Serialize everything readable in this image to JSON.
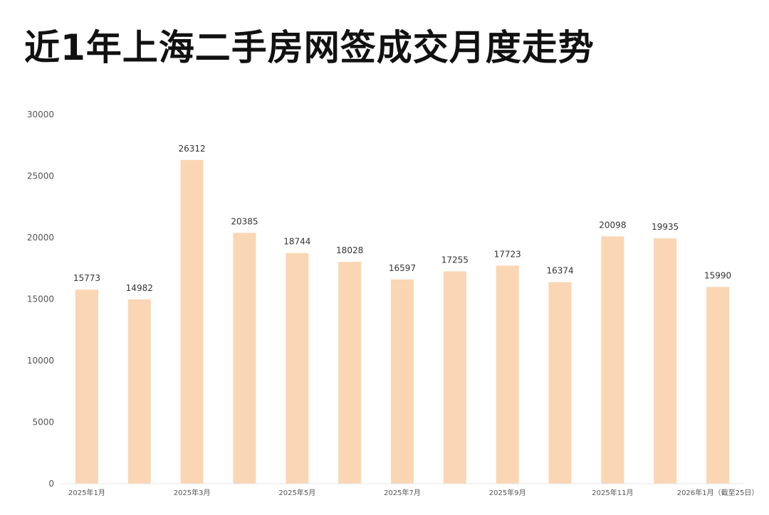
{
  "title": "近1年上海二手房网签成交月度走势",
  "chart_data": {
    "type": "bar",
    "title": "近1年上海二手房网签成交月度走势",
    "categories": [
      "2025年1月",
      "",
      "2025年3月",
      "",
      "2025年5月",
      "",
      "2025年7月",
      "",
      "2025年9月",
      "",
      "2025年11月",
      "",
      "2026年1月（截至25日）"
    ],
    "values": [
      15773,
      14982,
      26312,
      20385,
      18744,
      18028,
      16597,
      17255,
      17723,
      16374,
      20098,
      19935,
      15990
    ],
    "ylim": [
      0,
      30000
    ],
    "yticks": [
      0,
      5000,
      10000,
      15000,
      20000,
      25000,
      30000
    ],
    "xlabel": "",
    "ylabel": "",
    "grid": false,
    "bar_color": "#FAD6B4",
    "axis_color": "#E6E6E6"
  }
}
